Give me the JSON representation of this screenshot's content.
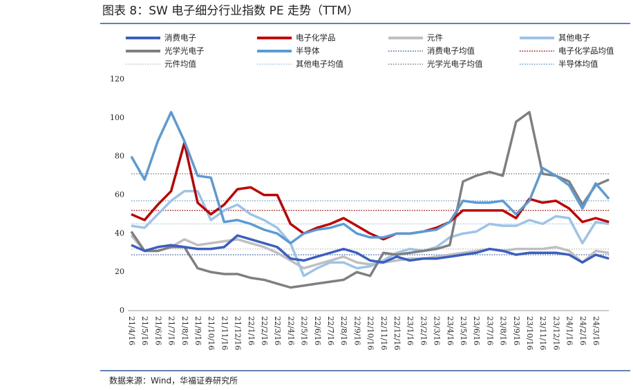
{
  "title": "图表 8：SW 电子细分行业指数 PE 走势（TTM）",
  "source": "数据来源：Wind，华福证券研究所",
  "chart_data": {
    "type": "line",
    "categories": [
      "21/4/16",
      "21/5/16",
      "21/6/16",
      "21/7/16",
      "21/8/16",
      "21/9/16",
      "21/10/16",
      "21/11/16",
      "21/12/16",
      "22/1/16",
      "22/2/16",
      "22/3/16",
      "22/4/16",
      "22/5/16",
      "22/6/16",
      "22/7/16",
      "22/8/16",
      "22/9/16",
      "22/10/16",
      "22/11/16",
      "22/12/16",
      "23/1/16",
      "23/2/16",
      "23/3/16",
      "23/4/16",
      "23/5/16",
      "23/6/16",
      "23/7/16",
      "23/8/16",
      "23/9/16",
      "23/10/16",
      "23/11/16",
      "23/12/16",
      "24/1/16",
      "24/2/16",
      "24/3/16",
      null
    ],
    "series": [
      {
        "name": "消费电子",
        "color": "#3a5fbf",
        "values": [
          34,
          31,
          33,
          34,
          33,
          32,
          32,
          33,
          39,
          37,
          35,
          33,
          27,
          26,
          28,
          30,
          32,
          30,
          26,
          25,
          28,
          26,
          27,
          27,
          28,
          29,
          30,
          32,
          31,
          29,
          30,
          30,
          30,
          29,
          25,
          29,
          27
        ]
      },
      {
        "name": "电子化学品",
        "color": "#c00000",
        "values": [
          50,
          47,
          55,
          62,
          87,
          56,
          50,
          55,
          63,
          64,
          60,
          60,
          45,
          40,
          43,
          45,
          48,
          44,
          40,
          37,
          40,
          40,
          41,
          43,
          46,
          52,
          52,
          52,
          52,
          48,
          58,
          56,
          57,
          53,
          46,
          48,
          46
        ]
      },
      {
        "name": "元件",
        "color": "#bfbfbf",
        "values": [
          39,
          31,
          31,
          33,
          37,
          34,
          35,
          36,
          37,
          35,
          33,
          30,
          26,
          22,
          24,
          26,
          28,
          25,
          24,
          25,
          26,
          27,
          27,
          28,
          29,
          30,
          31,
          32,
          31,
          32,
          32,
          32,
          33,
          31,
          25,
          31,
          30
        ]
      },
      {
        "name": "其他电子",
        "color": "#9dc3e6",
        "values": [
          44,
          43,
          50,
          57,
          62,
          62,
          47,
          52,
          55,
          50,
          47,
          43,
          35,
          18,
          22,
          25,
          25,
          22,
          23,
          26,
          30,
          32,
          31,
          33,
          38,
          40,
          41,
          45,
          44,
          44,
          47,
          45,
          49,
          48,
          35,
          46,
          45
        ]
      },
      {
        "name": "光学光电子",
        "color": "#7f7f7f",
        "values": [
          41,
          31,
          31,
          33,
          33,
          22,
          20,
          19,
          19,
          17,
          16,
          14,
          12,
          13,
          14,
          15,
          16,
          20,
          18,
          30,
          29,
          30,
          31,
          32,
          34,
          67,
          70,
          72,
          70,
          98,
          103,
          71,
          70,
          67,
          55,
          65,
          68
        ]
      },
      {
        "name": "半导体",
        "color": "#5b9bd5",
        "values": [
          80,
          68,
          88,
          103,
          88,
          70,
          69,
          46,
          47,
          45,
          42,
          40,
          35,
          40,
          42,
          43,
          45,
          40,
          38,
          38,
          40,
          40,
          41,
          42,
          46,
          57,
          56,
          56,
          57,
          50,
          57,
          74,
          70,
          65,
          53,
          66,
          58
        ]
      }
    ],
    "reference_lines": [
      {
        "name": "消费电子均值",
        "color": "#3a5fbf",
        "value": 29
      },
      {
        "name": "电子化学品均值",
        "color": "#c00000",
        "value": 52
      },
      {
        "name": "元件均值",
        "color": "#bfbfbf",
        "value": 32
      },
      {
        "name": "其他电子均值",
        "color": "#9dc3e6",
        "value": 45
      },
      {
        "name": "光学光电子均值",
        "color": "#7f7f7f",
        "value": 71
      },
      {
        "name": "半导体均值",
        "color": "#5b9bd5",
        "value": 57
      }
    ],
    "ylim": [
      0,
      120
    ],
    "yticks": [
      0,
      20,
      40,
      60,
      80,
      100,
      120
    ],
    "grid": false
  }
}
